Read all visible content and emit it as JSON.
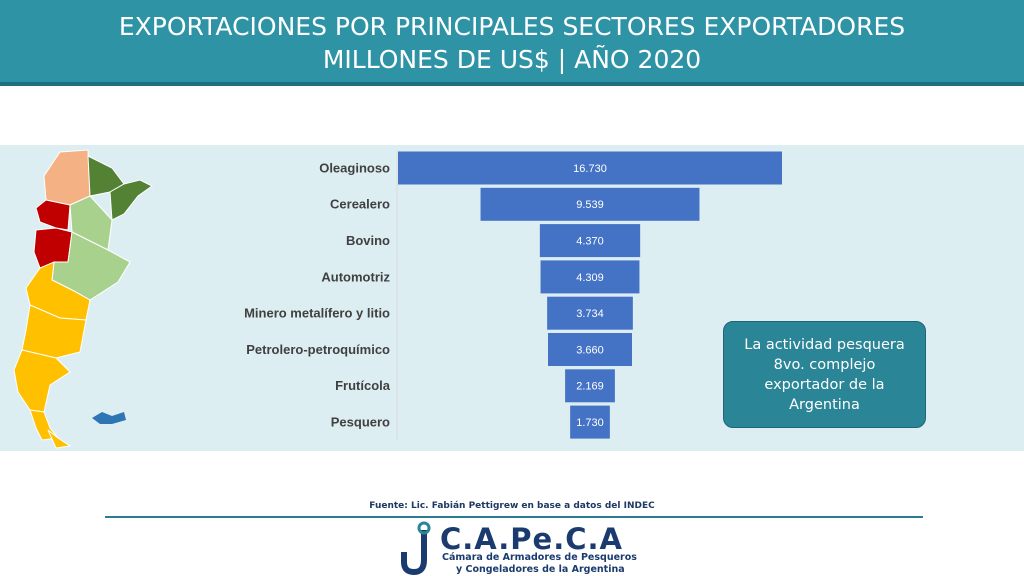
{
  "chart_data": {
    "type": "funnel",
    "title": "EXPORTACIONES POR PRINCIPALES SECTORES EXPORTADORES",
    "subtitle": "MILLONES DE US$ | AÑO 2020",
    "categories": [
      "Oleaginoso",
      "Cerealero",
      "Bovino",
      "Automotriz",
      "Minero metalífero y litio",
      "Petrolero-petroquímico",
      "Frutícola",
      "Pesquero"
    ],
    "values": [
      16730,
      9539,
      4370,
      4309,
      3734,
      3660,
      2169,
      1730
    ],
    "value_labels": [
      "16.730",
      "9.539",
      "4.370",
      "4.309",
      "3.734",
      "3.660",
      "2.169",
      "1.730"
    ],
    "color": "#4472c4",
    "annotation": "La actividad pesquera 8vo. complejo exportador de la Argentina"
  },
  "footer": {
    "source": "Fuente: Lic. Fabián Pettigrew en base a datos del INDEC",
    "logo_name": "C.A.Pe.C.A",
    "logo_line1": "Cámara de Armadores de Pesqueros",
    "logo_line2": "y Congeladores de la Argentina"
  }
}
